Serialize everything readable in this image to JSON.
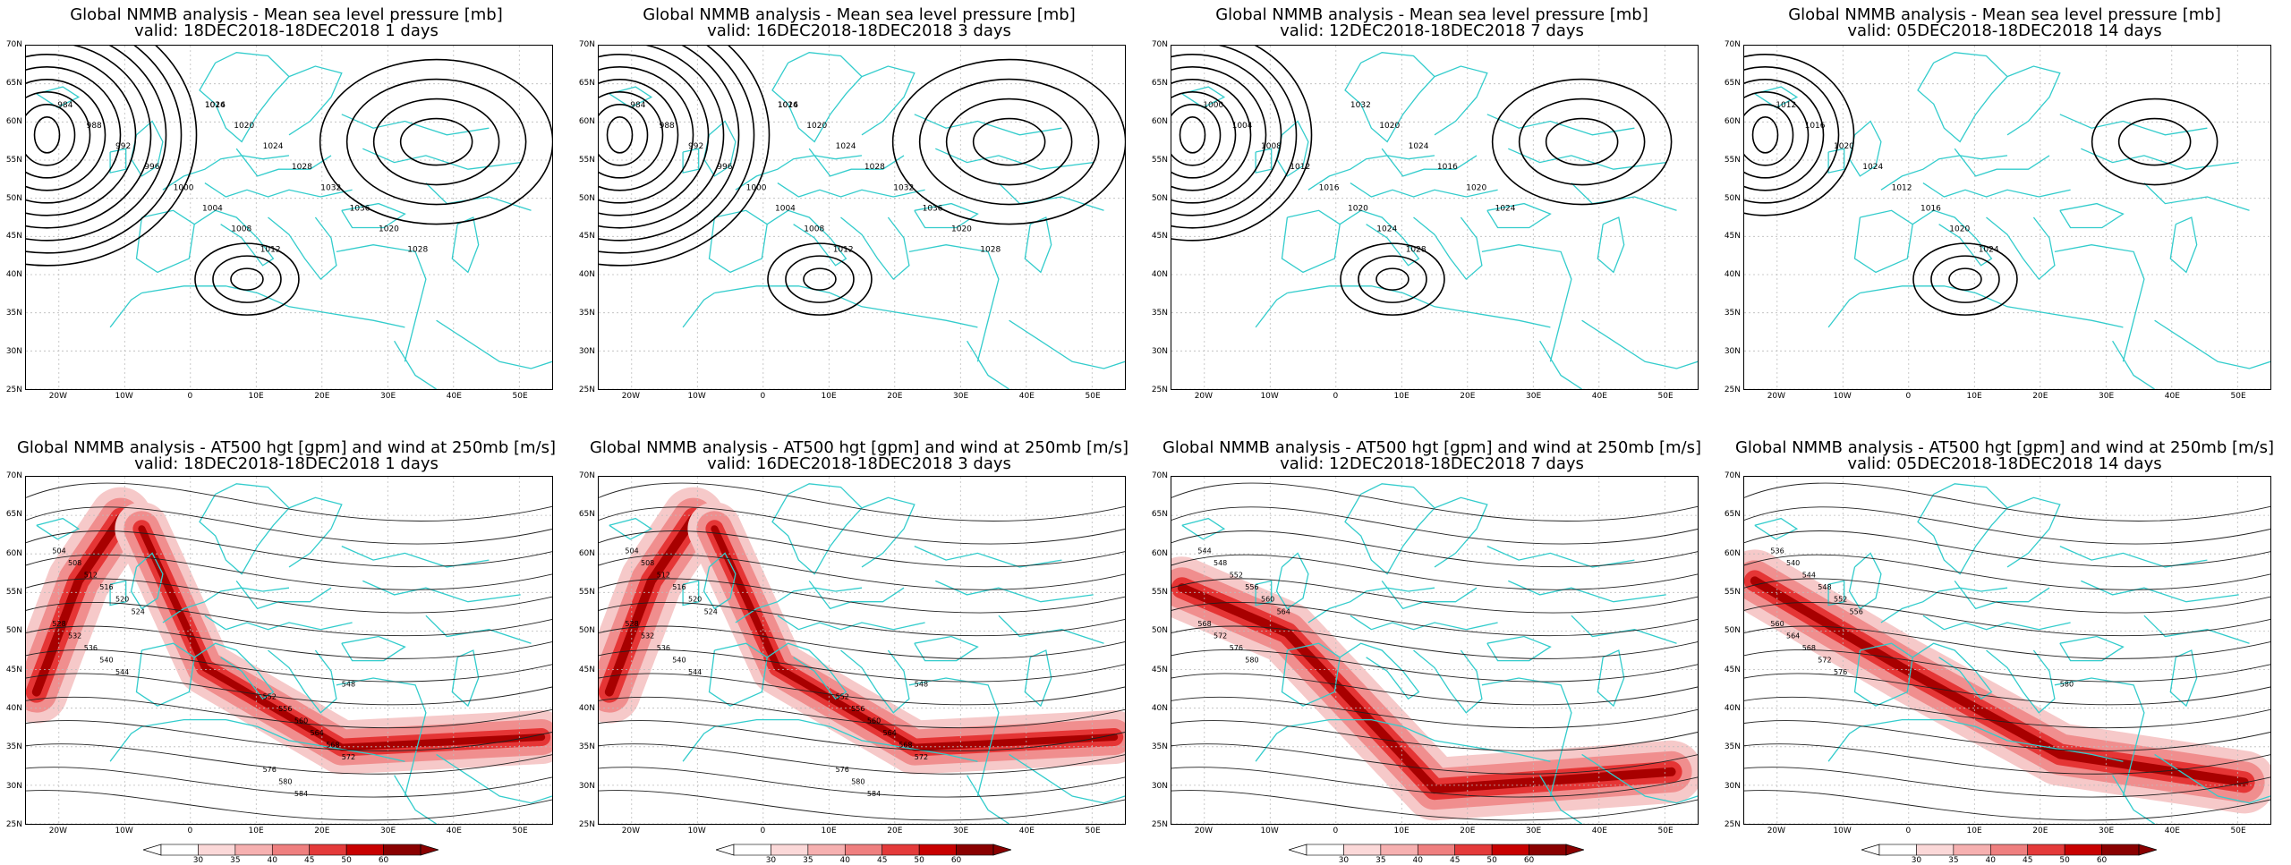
{
  "colors": {
    "coast": "#33cccc",
    "contour": "#000000",
    "grid": "#bbbbbb",
    "wind": "#e00000"
  },
  "lat_labels": [
    "70N",
    "65N",
    "60N",
    "55N",
    "50N",
    "45N",
    "40N",
    "35N",
    "30N",
    "25N"
  ],
  "lon_labels": [
    "20W",
    "10W",
    "0",
    "10E",
    "20E",
    "30E",
    "40E",
    "50E"
  ],
  "colorbar_labels": [
    "30",
    "35",
    "40",
    "45",
    "50",
    "60"
  ],
  "top_row": [
    {
      "title": "Global NMMB analysis - Mean sea level pressure [mb]",
      "valid": "valid: 18DEC2018-18DEC2018  1 days",
      "contour_labels": [
        "984",
        "988",
        "992",
        "996",
        "1000",
        "1004",
        "1008",
        "1012",
        "1016",
        "1020",
        "1024",
        "1028",
        "1032",
        "1036",
        "1020",
        "1028",
        "1024"
      ]
    },
    {
      "title": "Global NMMB analysis - Mean sea level pressure [mb]",
      "valid": "valid: 16DEC2018-18DEC2018  3 days",
      "contour_labels": [
        "984",
        "988",
        "992",
        "996",
        "1000",
        "1004",
        "1008",
        "1012",
        "1016",
        "1020",
        "1024",
        "1028",
        "1032",
        "1036",
        "1020",
        "1028",
        "1024"
      ]
    },
    {
      "title": "Global NMMB analysis - Mean sea level pressure [mb]",
      "valid": "valid: 12DEC2018-18DEC2018  7 days",
      "contour_labels": [
        "1000",
        "1004",
        "1008",
        "1012",
        "1016",
        "1020",
        "1024",
        "1028",
        "1032",
        "1020",
        "1024",
        "1016",
        "1020",
        "1024"
      ]
    },
    {
      "title": "Global NMMB analysis - Mean sea level pressure [mb]",
      "valid": "valid: 05DEC2018-18DEC2018  14 days",
      "contour_labels": [
        "1012",
        "1016",
        "1020",
        "1024",
        "1012",
        "1016",
        "1020",
        "1024"
      ]
    }
  ],
  "bottom_row": [
    {
      "title": "Global NMMB analysis - AT500 hgt [gpm] and wind at 250mb [m/s]",
      "valid": "valid: 18DEC2018-18DEC2018  1 days",
      "contour_labels": [
        "504",
        "508",
        "512",
        "516",
        "520",
        "524",
        "528",
        "532",
        "536",
        "540",
        "544",
        "548",
        "552",
        "556",
        "560",
        "564",
        "568",
        "572",
        "576",
        "580",
        "584"
      ]
    },
    {
      "title": "Global NMMB analysis - AT500 hgt [gpm] and wind at 250mb [m/s]",
      "valid": "valid: 16DEC2018-18DEC2018  3 days",
      "contour_labels": [
        "504",
        "508",
        "512",
        "516",
        "520",
        "524",
        "528",
        "532",
        "536",
        "540",
        "544",
        "548",
        "552",
        "556",
        "560",
        "564",
        "568",
        "572",
        "576",
        "580",
        "584"
      ]
    },
    {
      "title": "Global NMMB analysis - AT500 hgt [gpm] and wind at 250mb [m/s]",
      "valid": "valid: 12DEC2018-18DEC2018  7 days",
      "contour_labels": [
        "544",
        "548",
        "552",
        "556",
        "560",
        "564",
        "568",
        "572",
        "576",
        "580"
      ]
    },
    {
      "title": "Global NMMB analysis - AT500 hgt [gpm] and wind at 250mb [m/s]",
      "valid": "valid: 05DEC2018-18DEC2018  14 days",
      "contour_labels": [
        "536",
        "540",
        "544",
        "548",
        "552",
        "556",
        "560",
        "564",
        "568",
        "572",
        "576",
        "580"
      ]
    }
  ]
}
